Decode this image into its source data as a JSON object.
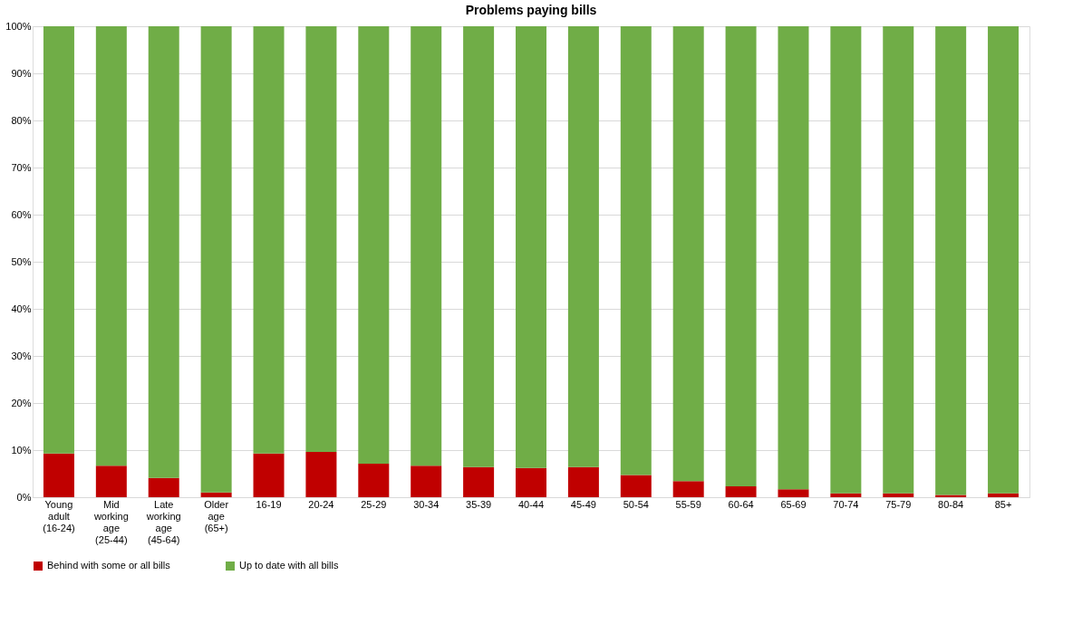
{
  "chart_data": {
    "type": "bar",
    "title": "Problems paying bills",
    "stacked": true,
    "categories": [
      "Young adult (16-24)",
      "Mid working age (25-44)",
      "Late working age (45-64)",
      "Older age (65+)",
      "16-19",
      "20-24",
      "25-29",
      "30-34",
      "35-39",
      "40-44",
      "45-49",
      "50-54",
      "55-59",
      "60-64",
      "65-69",
      "70-74",
      "75-79",
      "80-84",
      "85+"
    ],
    "series": [
      {
        "name": "Behind with some or all bills",
        "color": "#c00000",
        "values": [
          9.3,
          6.7,
          4.1,
          1.0,
          9.3,
          9.6,
          7.1,
          6.7,
          6.4,
          6.2,
          6.4,
          4.7,
          3.4,
          2.3,
          1.7,
          0.8,
          0.8,
          0.5,
          0.8
        ]
      },
      {
        "name": "Up to date with all bills",
        "color": "#70ad47",
        "values": [
          90.7,
          93.3,
          95.9,
          99.0,
          90.7,
          90.4,
          92.9,
          93.3,
          93.6,
          93.8,
          93.6,
          95.3,
          96.6,
          97.7,
          98.3,
          99.2,
          99.2,
          99.5,
          99.2
        ]
      }
    ],
    "ylim": [
      0,
      100
    ],
    "yticks": [
      {
        "value": 0,
        "label": "0%"
      },
      {
        "value": 10,
        "label": "10%"
      },
      {
        "value": 20,
        "label": "20%"
      },
      {
        "value": 30,
        "label": "30%"
      },
      {
        "value": 40,
        "label": "40%"
      },
      {
        "value": 50,
        "label": "50%"
      },
      {
        "value": 60,
        "label": "60%"
      },
      {
        "value": 70,
        "label": "70%"
      },
      {
        "value": 80,
        "label": "80%"
      },
      {
        "value": 90,
        "label": "90%"
      },
      {
        "value": 100,
        "label": "100%"
      }
    ],
    "grid": "y",
    "legend": "bottom"
  }
}
